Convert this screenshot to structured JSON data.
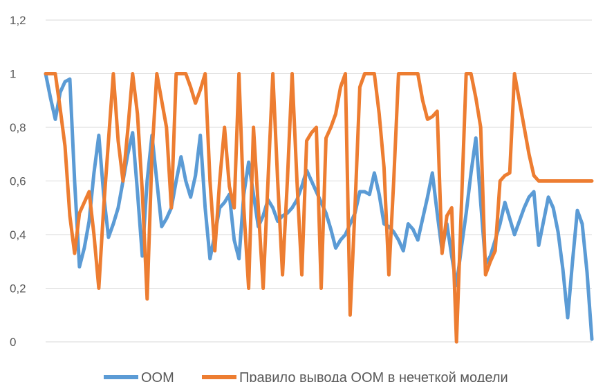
{
  "chart_data": {
    "type": "line",
    "title": "",
    "xlabel": "",
    "ylabel": "",
    "ylim": [
      0,
      1.2
    ],
    "yticks": [
      0,
      0.2,
      0.4,
      0.6,
      0.8,
      1,
      1.2
    ],
    "ytick_labels": [
      "0",
      "0,2",
      "0,4",
      "0,6",
      "0,8",
      "1",
      "1,2"
    ],
    "grid": "horizontal",
    "legend_position": "bottom",
    "x": [
      1,
      2,
      3,
      4,
      5,
      6,
      7,
      8,
      9,
      10,
      11,
      12,
      13,
      14,
      15,
      16,
      17,
      18,
      19,
      20,
      21,
      22,
      23,
      24,
      25,
      26,
      27,
      28,
      29,
      30,
      31,
      32,
      33,
      34,
      35,
      36,
      37,
      38,
      39,
      40,
      41,
      42,
      43,
      44,
      45,
      46,
      47,
      48,
      49,
      50,
      51,
      52,
      53,
      54,
      55,
      56,
      57,
      58,
      59,
      60,
      61,
      62,
      63,
      64,
      65,
      66,
      67,
      68,
      69,
      70,
      71,
      72,
      73,
      74,
      75,
      76,
      77,
      78,
      79,
      80,
      81,
      82,
      83,
      84,
      85,
      86,
      87,
      88,
      89,
      90,
      91,
      92,
      93,
      94,
      95,
      96,
      97,
      98,
      99,
      100,
      101,
      102,
      103,
      104,
      105,
      106,
      107,
      108,
      109,
      110,
      111,
      112,
      113,
      114
    ],
    "series": [
      {
        "name": "ООМ",
        "color": "#5b9bd5",
        "values": [
          1,
          0.91,
          0.83,
          0.93,
          0.97,
          0.98,
          0.6,
          0.28,
          0.35,
          0.45,
          0.63,
          0.77,
          0.55,
          0.39,
          0.44,
          0.5,
          0.6,
          0.7,
          0.78,
          0.56,
          0.32,
          0.6,
          0.77,
          0.6,
          0.43,
          0.46,
          0.5,
          0.6,
          0.69,
          0.6,
          0.54,
          0.62,
          0.77,
          0.5,
          0.31,
          0.4,
          0.5,
          0.52,
          0.55,
          0.38,
          0.31,
          0.55,
          0.67,
          0.55,
          0.43,
          0.47,
          0.53,
          0.5,
          0.45,
          0.47,
          0.48,
          0.5,
          0.53,
          0.58,
          0.64,
          0.6,
          0.56,
          0.52,
          0.48,
          0.42,
          0.35,
          0.38,
          0.4,
          0.44,
          0.48,
          0.56,
          0.56,
          0.55,
          0.63,
          0.55,
          0.44,
          0.43,
          0.41,
          0.38,
          0.34,
          0.44,
          0.42,
          0.38,
          0.46,
          0.54,
          0.63,
          0.48,
          0.34,
          0.44,
          0.32,
          0.21,
          0.35,
          0.48,
          0.63,
          0.76,
          0.52,
          0.29,
          0.32,
          0.38,
          0.44,
          0.52,
          0.46,
          0.4,
          0.45,
          0.5,
          0.54,
          0.56,
          0.36,
          0.45,
          0.54,
          0.5,
          0.41,
          0.27,
          0.09,
          0.3,
          0.49,
          0.44,
          0.26,
          0.01
        ]
      },
      {
        "name": "Правило вывода ООМ в нечеткой модели",
        "color": "#ed7d31",
        "values": [
          1,
          1,
          1,
          0.87,
          0.73,
          0.47,
          0.33,
          0.48,
          0.52,
          0.56,
          0.4,
          0.2,
          0.5,
          0.75,
          1,
          0.75,
          0.6,
          0.79,
          1,
          0.85,
          0.56,
          0.16,
          0.7,
          1,
          0.9,
          0.8,
          0.5,
          1,
          1,
          1,
          0.95,
          0.89,
          0.94,
          1,
          0.6,
          0.34,
          0.6,
          0.8,
          0.58,
          0.5,
          1,
          0.5,
          0.2,
          0.8,
          0.5,
          0.2,
          0.6,
          1,
          0.6,
          0.25,
          0.6,
          1,
          0.6,
          0.25,
          0.75,
          0.78,
          0.8,
          0.2,
          0.76,
          0.8,
          0.85,
          0.95,
          1,
          0.1,
          0.5,
          0.95,
          1,
          1,
          1,
          0.85,
          0.65,
          0.25,
          0.6,
          1,
          1,
          1,
          1,
          1,
          0.9,
          0.83,
          0.84,
          0.86,
          0.33,
          0.47,
          0.5,
          0,
          0.5,
          1,
          1,
          0.91,
          0.8,
          0.25,
          0.3,
          0.34,
          0.6,
          0.62,
          0.63,
          1,
          0.9,
          0.8,
          0.7,
          0.62,
          0.6,
          0.6,
          0.6,
          0.6,
          0.6,
          0.6,
          0.6,
          0.6,
          0.6,
          0.6,
          0.6,
          0.6
        ]
      }
    ]
  }
}
